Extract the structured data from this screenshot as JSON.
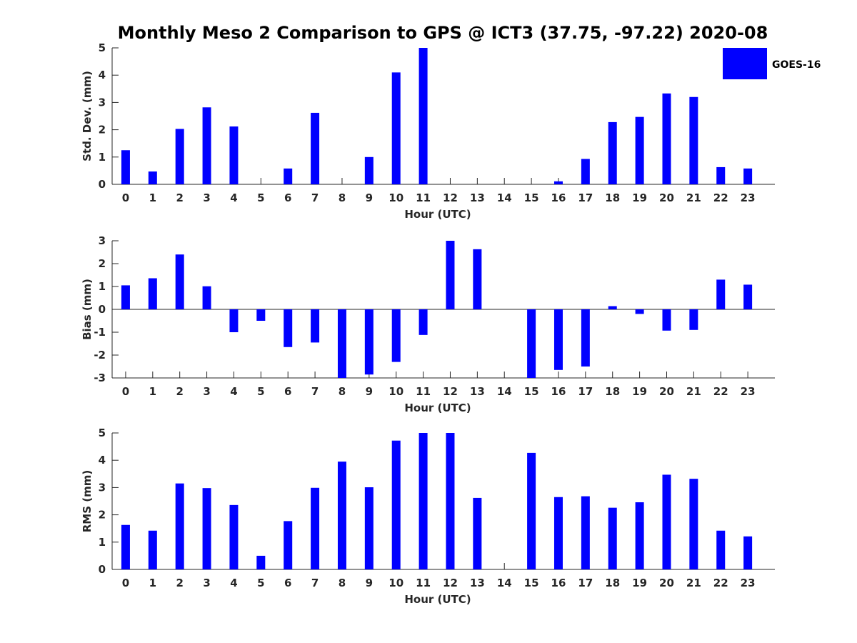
{
  "title": "Monthly Meso 2 Comparison to GPS @ ICT3 (37.75, -97.22) 2020-08",
  "colors": {
    "bar": "#0000ff",
    "axis": "#262626",
    "background": "#ffffff"
  },
  "legend": {
    "label": "GOES-16",
    "placement": "top-right"
  },
  "chart_data": [
    {
      "type": "bar",
      "xlabel": "Hour (UTC)",
      "ylabel": "Std. Dev. (mm)",
      "ylim": [
        0,
        5
      ],
      "yticks": [
        0,
        1,
        2,
        3,
        4,
        5
      ],
      "categories": [
        "0",
        "1",
        "2",
        "3",
        "4",
        "5",
        "6",
        "7",
        "8",
        "9",
        "10",
        "11",
        "12",
        "13",
        "14",
        "15",
        "16",
        "17",
        "18",
        "19",
        "20",
        "21",
        "22",
        "23"
      ],
      "series": [
        {
          "name": "GOES-16",
          "values": [
            1.25,
            0.47,
            2.03,
            2.82,
            2.12,
            null,
            0.58,
            2.62,
            null,
            1.0,
            4.1,
            5.0,
            null,
            null,
            null,
            null,
            0.11,
            0.93,
            2.28,
            2.47,
            3.33,
            3.2,
            0.63,
            0.58
          ]
        }
      ]
    },
    {
      "type": "bar",
      "xlabel": "Hour (UTC)",
      "ylabel": "Bias (mm)",
      "ylim": [
        -3,
        3
      ],
      "yticks": [
        -3,
        -2,
        -1,
        0,
        1,
        2,
        3
      ],
      "categories": [
        "0",
        "1",
        "2",
        "3",
        "4",
        "5",
        "6",
        "7",
        "8",
        "9",
        "10",
        "11",
        "12",
        "13",
        "14",
        "15",
        "16",
        "17",
        "18",
        "19",
        "20",
        "21",
        "22",
        "23"
      ],
      "series": [
        {
          "name": "GOES-16",
          "values": [
            1.05,
            1.36,
            2.4,
            1.01,
            -1.0,
            -0.5,
            -1.65,
            -1.45,
            -3.0,
            -2.85,
            -2.3,
            -1.12,
            3.0,
            2.63,
            null,
            -3.0,
            -2.65,
            -2.5,
            0.14,
            -0.2,
            -0.93,
            -0.9,
            1.3,
            1.08
          ]
        }
      ]
    },
    {
      "type": "bar",
      "xlabel": "Hour (UTC)",
      "ylabel": "RMS (mm)",
      "ylim": [
        0,
        5
      ],
      "yticks": [
        0,
        1,
        2,
        3,
        4,
        5
      ],
      "categories": [
        "0",
        "1",
        "2",
        "3",
        "4",
        "5",
        "6",
        "7",
        "8",
        "9",
        "10",
        "11",
        "12",
        "13",
        "14",
        "15",
        "16",
        "17",
        "18",
        "19",
        "20",
        "21",
        "22",
        "23"
      ],
      "series": [
        {
          "name": "GOES-16",
          "values": [
            1.63,
            1.42,
            3.15,
            2.98,
            2.36,
            0.5,
            1.77,
            2.99,
            3.95,
            3.01,
            4.72,
            5.0,
            5.0,
            2.62,
            null,
            4.27,
            2.65,
            2.68,
            2.26,
            2.46,
            3.47,
            3.32,
            1.42,
            1.21
          ]
        }
      ]
    }
  ]
}
